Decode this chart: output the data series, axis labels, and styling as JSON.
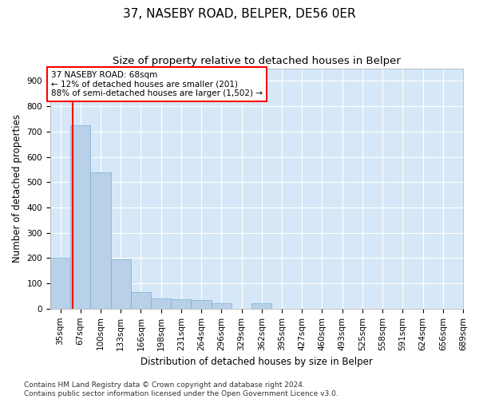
{
  "title": "37, NASEBY ROAD, BELPER, DE56 0ER",
  "subtitle": "Size of property relative to detached houses in Belper",
  "xlabel": "Distribution of detached houses by size in Belper",
  "ylabel": "Number of detached properties",
  "bins": [
    "35sqm",
    "67sqm",
    "100sqm",
    "133sqm",
    "166sqm",
    "198sqm",
    "231sqm",
    "264sqm",
    "296sqm",
    "329sqm",
    "362sqm",
    "395sqm",
    "427sqm",
    "460sqm",
    "493sqm",
    "525sqm",
    "558sqm",
    "591sqm",
    "624sqm",
    "656sqm",
    "689sqm"
  ],
  "bar_values": [
    200,
    725,
    540,
    195,
    65,
    42,
    38,
    35,
    22,
    0,
    20,
    0,
    0,
    0,
    0,
    0,
    0,
    0,
    0,
    0
  ],
  "bar_color": "#b8d0e8",
  "bar_edge_color": "#7aaed0",
  "red_line_x": 0.6,
  "annotation_text": "37 NASEBY ROAD: 68sqm\n← 12% of detached houses are smaller (201)\n88% of semi-detached houses are larger (1,502) →",
  "annotation_box_color": "white",
  "annotation_box_edge_color": "red",
  "ylim": [
    0,
    950
  ],
  "yticks": [
    0,
    100,
    200,
    300,
    400,
    500,
    600,
    700,
    800,
    900
  ],
  "footnote": "Contains HM Land Registry data © Crown copyright and database right 2024.\nContains public sector information licensed under the Open Government Licence v3.0.",
  "plot_bg_color": "#d6e8f7",
  "grid_color": "white",
  "title_fontsize": 11,
  "subtitle_fontsize": 9.5,
  "label_fontsize": 8.5,
  "tick_fontsize": 7.5,
  "footnote_fontsize": 6.5,
  "annotation_fontsize": 7.5
}
